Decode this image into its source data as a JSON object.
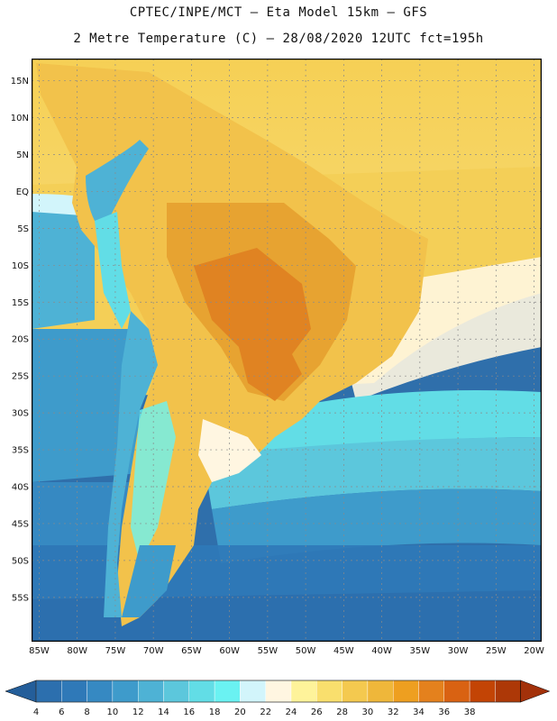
{
  "header": {
    "line1": "CPTEC/INPE/MCT –  Eta Model 15km – GFS",
    "line2": "2 Metre Temperature (C) – 28/08/2020 12UTC fct=195h"
  },
  "map": {
    "lon_range": [
      -86,
      -19
    ],
    "lat_range": [
      18,
      -61
    ],
    "lat_labels": [
      "15N",
      "10N",
      "5N",
      "EQ",
      "5S",
      "10S",
      "15S",
      "20S",
      "25S",
      "30S",
      "35S",
      "40S",
      "45S",
      "50S",
      "55S"
    ],
    "lon_labels": [
      "85W",
      "80W",
      "75W",
      "70W",
      "65W",
      "60W",
      "55W",
      "50W",
      "45W",
      "40W",
      "35W",
      "30W",
      "25W",
      "20W"
    ]
  },
  "legend": {
    "labels": [
      "4",
      "6",
      "8",
      "10",
      "12",
      "14",
      "16",
      "18",
      "20",
      "22",
      "24",
      "26",
      "28",
      "30",
      "32",
      "34",
      "36",
      "38"
    ],
    "colors": [
      "#2c6fae",
      "#2f79b8",
      "#3689c2",
      "#3e9bcb",
      "#4eb2d5",
      "#5cc7dc",
      "#62dde6",
      "#6af2f2",
      "#d2f5fb",
      "#fff6e1",
      "#fef39a",
      "#f9df6d",
      "#f4c94f",
      "#efb73a",
      "#ee9f20",
      "#e4811d",
      "#d96212",
      "#c34405",
      "#ad3807"
    ],
    "low_color": "#245e9a",
    "high_color": "#a3310a"
  }
}
